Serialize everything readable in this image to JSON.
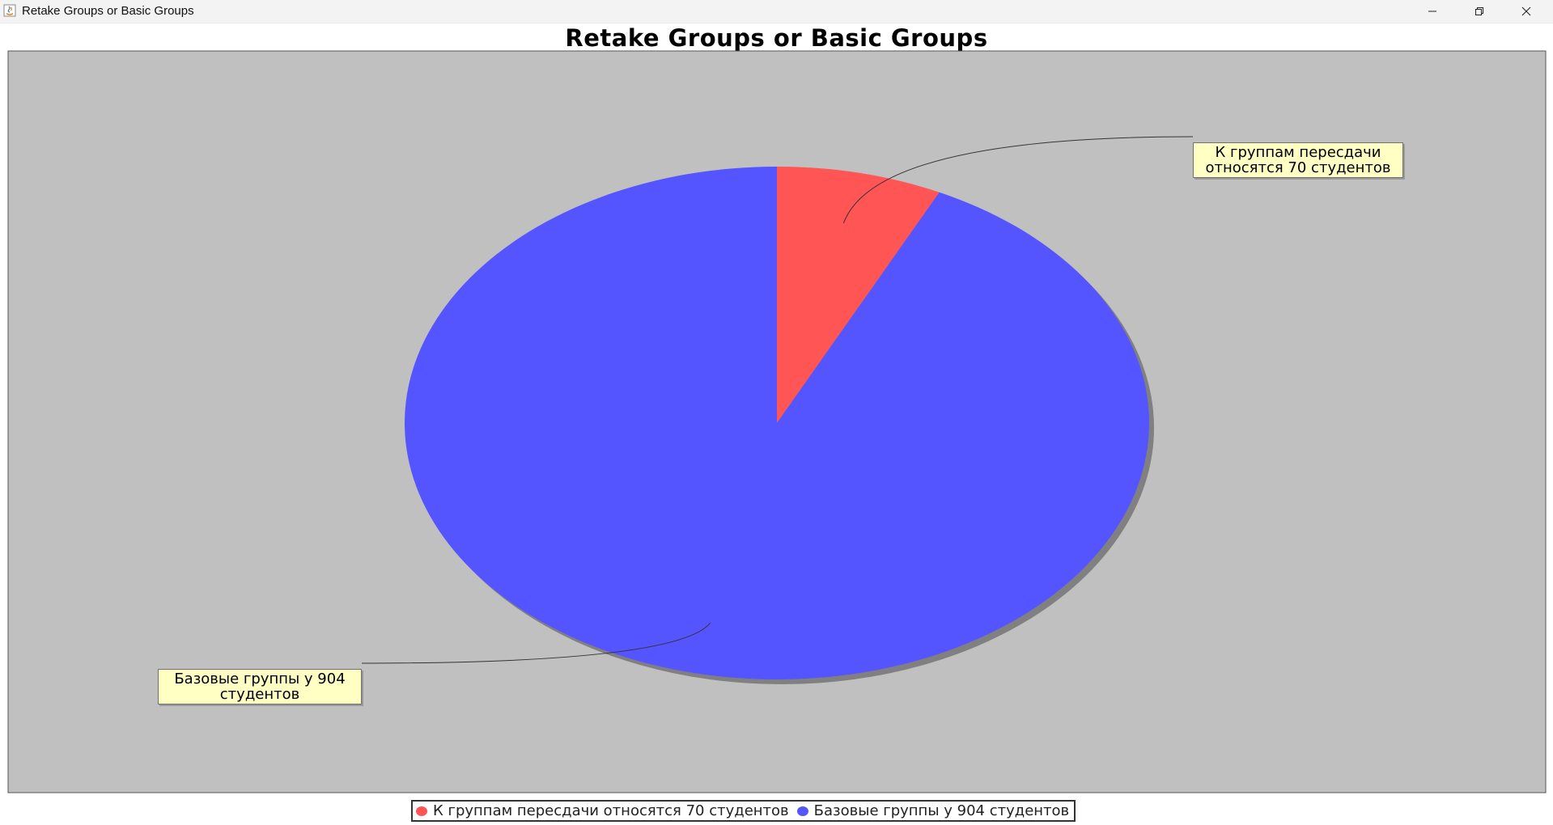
{
  "window": {
    "title": "Retake Groups or Basic Groups",
    "controls": {
      "minimize": "minimize-icon",
      "maximize": "restore-icon",
      "close": "close-icon"
    }
  },
  "chart_data": {
    "type": "pie",
    "title": "Retake Groups or Basic Groups",
    "background": "#c0c0c0",
    "slices": [
      {
        "name": "К группам пересдачи относятся 70 студентов",
        "value": 70,
        "color": "#ff5555",
        "label_lines": [
          "К группам пересдачи",
          "относятся 70 студентов"
        ]
      },
      {
        "name": "Базовые группы у 904 студентов",
        "value": 904,
        "color": "#5555ff",
        "label_lines": [
          "Базовые группы у 904",
          "студентов"
        ]
      }
    ],
    "legend_position": "bottom",
    "shadow_color": "#808080",
    "label_background": "#ffffc4"
  }
}
